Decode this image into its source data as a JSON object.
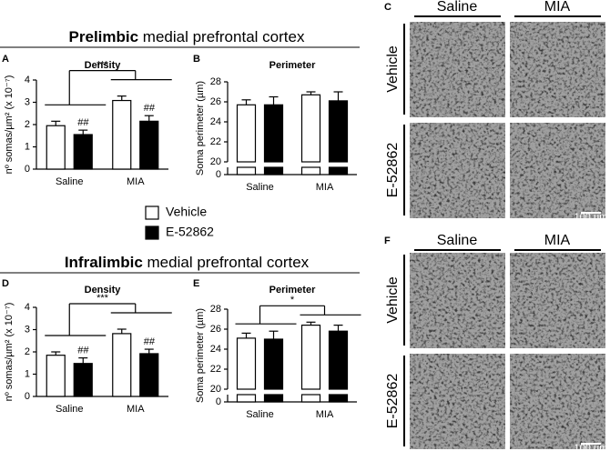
{
  "sections": [
    {
      "bold": "Prelimbic",
      "rest": " medial prefrontal cortex"
    },
    {
      "bold": "Infralimbic",
      "rest": " medial prefrontal cortex"
    }
  ],
  "legend": {
    "items": [
      {
        "name": "Vehicle",
        "color": "#ffffff"
      },
      {
        "name": "E-52862",
        "color": "#000000"
      }
    ]
  },
  "chart_data": [
    {
      "type": "bar",
      "panel": "A",
      "title": "Density",
      "ylabel": "nº somas/µm² (x 10⁻⁷)",
      "categories": [
        "Saline",
        "MIA"
      ],
      "series": [
        {
          "values": [
            1.95,
            3.08
          ],
          "errors": [
            0.2,
            0.2
          ]
        },
        {
          "values": [
            1.55,
            2.15
          ],
          "errors": [
            0.2,
            0.25
          ]
        }
      ],
      "ylim": [
        0,
        4
      ],
      "yticks": [
        0,
        1,
        2,
        3,
        4
      ],
      "annotations": [
        "***",
        "##",
        "##"
      ]
    },
    {
      "type": "broken-bar",
      "panel": "B",
      "title": "Perimeter",
      "ylabel": "Soma perimeter (µm)",
      "categories": [
        "Saline",
        "MIA"
      ],
      "series": [
        {
          "values": [
            25.7,
            26.7
          ],
          "errors": [
            0.5,
            0.3
          ]
        },
        {
          "values": [
            25.7,
            26.1
          ],
          "errors": [
            0.8,
            0.9
          ]
        }
      ],
      "ylim": [
        20,
        28
      ],
      "yticks": [
        20,
        22,
        24,
        26,
        28
      ],
      "lower_ylim": [
        0,
        1.5
      ],
      "lower_yticks": [
        0
      ],
      "annotations": []
    },
    {
      "type": "bar",
      "panel": "D",
      "title": "Density",
      "ylabel": "nº somas/µm² (x 10⁻⁷)",
      "categories": [
        "Saline",
        "MIA"
      ],
      "series": [
        {
          "values": [
            1.85,
            2.82
          ],
          "errors": [
            0.15,
            0.2
          ]
        },
        {
          "values": [
            1.48,
            1.92
          ],
          "errors": [
            0.25,
            0.2
          ]
        }
      ],
      "ylim": [
        0,
        4
      ],
      "yticks": [
        0,
        1,
        2,
        3,
        4
      ],
      "annotations": [
        "***",
        "##",
        "##"
      ]
    },
    {
      "type": "broken-bar",
      "panel": "E",
      "title": "Perimeter",
      "ylabel": "Soma perimeter (µm)",
      "categories": [
        "Saline",
        "MIA"
      ],
      "series": [
        {
          "values": [
            25.1,
            26.4
          ],
          "errors": [
            0.5,
            0.3
          ]
        },
        {
          "values": [
            25.0,
            25.8
          ],
          "errors": [
            0.8,
            0.6
          ]
        }
      ],
      "ylim": [
        20,
        28
      ],
      "yticks": [
        20,
        22,
        24,
        26,
        28
      ],
      "lower_ylim": [
        0,
        1.5
      ],
      "lower_yticks": [
        0
      ],
      "annotations": [
        "*"
      ]
    }
  ],
  "images": [
    {
      "panel": "C",
      "columns": [
        "Saline",
        "MIA"
      ],
      "rows": [
        "Vehicle",
        "E-52862"
      ],
      "scale_bar": "100 µm"
    },
    {
      "panel": "F",
      "columns": [
        "Saline",
        "MIA"
      ],
      "rows": [
        "Vehicle",
        "E-52862"
      ],
      "scale_bar": "100 µm"
    }
  ]
}
